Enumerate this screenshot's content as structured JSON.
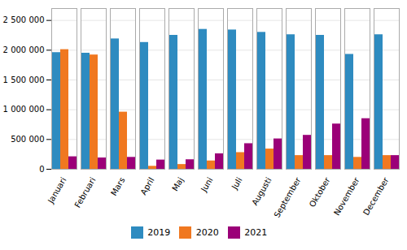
{
  "chart_data": {
    "type": "bar",
    "categories": [
      "Januari",
      "Februari",
      "Mars",
      "April",
      "Maj",
      "Juni",
      "Juli",
      "Augusti",
      "September",
      "Oktober",
      "November",
      "December"
    ],
    "series": [
      {
        "name": "2019",
        "color": "#2e8bc0",
        "values": [
          1960000,
          1950000,
          2190000,
          2130000,
          2250000,
          2350000,
          2340000,
          2300000,
          2260000,
          2250000,
          1930000,
          2260000
        ]
      },
      {
        "name": "2020",
        "color": "#f07820",
        "values": [
          2010000,
          1920000,
          960000,
          50000,
          80000,
          140000,
          280000,
          340000,
          230000,
          230000,
          200000,
          230000
        ]
      },
      {
        "name": "2021",
        "color": "#9b0078",
        "values": [
          210000,
          190000,
          200000,
          155000,
          160000,
          260000,
          430000,
          510000,
          570000,
          760000,
          850000,
          230000
        ]
      }
    ],
    "ylim": [
      0,
      2700000
    ],
    "yticks": [
      0,
      {
        "value": 500000,
        "label": "500 000"
      },
      {
        "value": 1000000,
        "label": "1 000 000"
      },
      {
        "value": 1500000,
        "label": "1 500 000"
      },
      {
        "value": 2000000,
        "label": "2 000 000"
      },
      {
        "value": 2500000,
        "label": "2 500 000"
      }
    ],
    "grid": true,
    "legend": "bottom"
  }
}
